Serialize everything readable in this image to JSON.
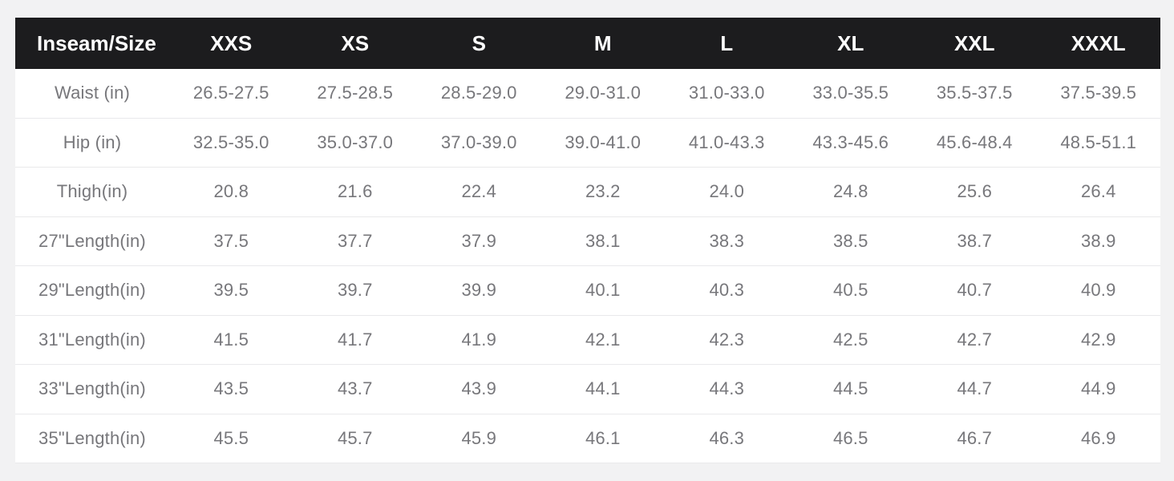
{
  "chart_data": {
    "type": "table",
    "columns": [
      "Inseam/Size",
      "XXS",
      "XS",
      "S",
      "M",
      "L",
      "XL",
      "XXL",
      "XXXL"
    ],
    "rows": [
      {
        "label": "Waist (in)",
        "values": [
          "26.5-27.5",
          "27.5-28.5",
          "28.5-29.0",
          "29.0-31.0",
          "31.0-33.0",
          "33.0-35.5",
          "35.5-37.5",
          "37.5-39.5"
        ]
      },
      {
        "label": "Hip (in)",
        "values": [
          "32.5-35.0",
          "35.0-37.0",
          "37.0-39.0",
          "39.0-41.0",
          "41.0-43.3",
          "43.3-45.6",
          "45.6-48.4",
          "48.5-51.1"
        ]
      },
      {
        "label": "Thigh(in)",
        "values": [
          "20.8",
          "21.6",
          "22.4",
          "23.2",
          "24.0",
          "24.8",
          "25.6",
          "26.4"
        ]
      },
      {
        "label": "27\"Length(in)",
        "values": [
          "37.5",
          "37.7",
          "37.9",
          "38.1",
          "38.3",
          "38.5",
          "38.7",
          "38.9"
        ]
      },
      {
        "label": "29\"Length(in)",
        "values": [
          "39.5",
          "39.7",
          "39.9",
          "40.1",
          "40.3",
          "40.5",
          "40.7",
          "40.9"
        ]
      },
      {
        "label": "31\"Length(in)",
        "values": [
          "41.5",
          "41.7",
          "41.9",
          "42.1",
          "42.3",
          "42.5",
          "42.7",
          "42.9"
        ]
      },
      {
        "label": "33\"Length(in)",
        "values": [
          "43.5",
          "43.7",
          "43.9",
          "44.1",
          "44.3",
          "44.5",
          "44.7",
          "44.9"
        ]
      },
      {
        "label": "35\"Length(in)",
        "values": [
          "45.5",
          "45.7",
          "45.9",
          "46.1",
          "46.3",
          "46.5",
          "46.7",
          "46.9"
        ]
      }
    ],
    "layout": {
      "header_position": "top",
      "first_column_role": "row-labels",
      "grid": "horizontal-dividers-only"
    }
  },
  "colors": {
    "page_bg": "#f2f2f3",
    "header_bg": "#1c1c1e",
    "header_text": "#ffffff",
    "row_bg": "#ffffff",
    "body_text": "#77777b",
    "divider": "#e9e9eb"
  }
}
